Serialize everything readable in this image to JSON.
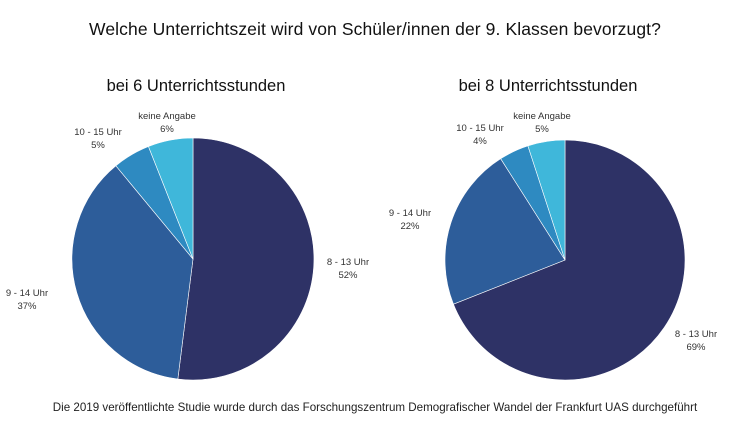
{
  "page_title": "Welche Unterrichtszeit wird von Schüler/innen der 9. Klassen bevorzugt?",
  "footer": "Die 2019 veröffentlichte Studie wurde durch das Forschungszentrum Demografischer Wandel der Frankfurt UAS durchgeführt",
  "colors": {
    "8-13": "#2e3266",
    "9-14": "#2d5d9a",
    "10-15": "#2e8ac1",
    "keine": "#3fb7da"
  },
  "chart_data": [
    {
      "type": "pie",
      "title": "bei 6 Unterrichtsstunden",
      "slices": [
        {
          "label": "8 - 13 Uhr",
          "value": 52,
          "value_text": "52%"
        },
        {
          "label": "9 - 14 Uhr",
          "value": 37,
          "value_text": "37%"
        },
        {
          "label": "10 - 15 Uhr",
          "value": 5,
          "value_text": "5%"
        },
        {
          "label": "keine Angabe",
          "value": 6,
          "value_text": "6%"
        }
      ]
    },
    {
      "type": "pie",
      "title": "bei 8 Unterrichtsstunden",
      "slices": [
        {
          "label": "8 - 13 Uhr",
          "value": 69,
          "value_text": "69%"
        },
        {
          "label": "9 - 14 Uhr",
          "value": 22,
          "value_text": "22%"
        },
        {
          "label": "10 - 15 Uhr",
          "value": 4,
          "value_text": "4%"
        },
        {
          "label": "keine Angabe",
          "value": 5,
          "value_text": "5%"
        }
      ]
    }
  ]
}
